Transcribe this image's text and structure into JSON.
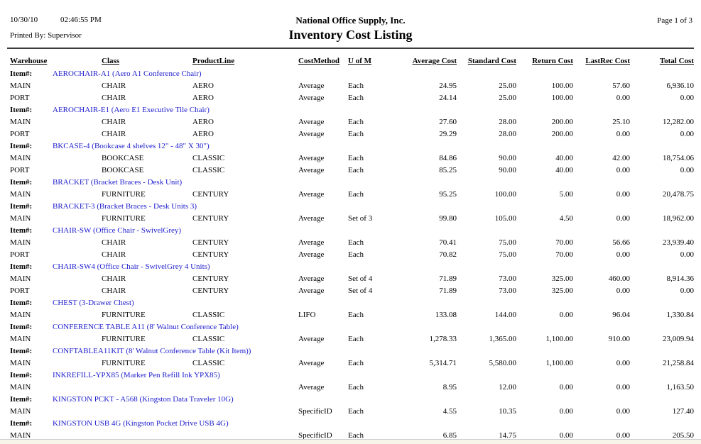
{
  "report": {
    "date": "10/30/10",
    "time": "02:46:55 PM",
    "printed_by": "Printed By: Supervisor",
    "company": "National Office Supply, Inc.",
    "title": "Inventory Cost Listing",
    "page_info": "Page 1 of 3",
    "link_color": "#1d1dce"
  },
  "table": {
    "item_label": "Item#:",
    "columns": [
      "Warehouse",
      "Class",
      "ProductLine",
      "CostMethod",
      "U of M",
      "Average Cost",
      "Standard Cost",
      "Return Cost",
      "LastRec Cost",
      "Total Cost"
    ],
    "items": [
      {
        "code": "AEROCHAIR-A1 (Aero A1 Conference Chair)",
        "rows": [
          {
            "warehouse": "MAIN",
            "class": "CHAIR",
            "product_line": "AERO",
            "cost_method": "Average",
            "uofm": "Each",
            "average_cost": "24.95",
            "standard_cost": "25.00",
            "return_cost": "100.00",
            "last_rec_cost": "57.60",
            "total_cost": "6,936.10"
          },
          {
            "warehouse": "PORT",
            "class": "CHAIR",
            "product_line": "AERO",
            "cost_method": "Average",
            "uofm": "Each",
            "average_cost": "24.14",
            "standard_cost": "25.00",
            "return_cost": "100.00",
            "last_rec_cost": "0.00",
            "total_cost": "0.00"
          }
        ]
      },
      {
        "code": "AEROCHAIR-E1 (Aero E1 Executive Tile Chair)",
        "rows": [
          {
            "warehouse": "MAIN",
            "class": "CHAIR",
            "product_line": "AERO",
            "cost_method": "Average",
            "uofm": "Each",
            "average_cost": "27.60",
            "standard_cost": "28.00",
            "return_cost": "200.00",
            "last_rec_cost": "25.10",
            "total_cost": "12,282.00"
          },
          {
            "warehouse": "PORT",
            "class": "CHAIR",
            "product_line": "AERO",
            "cost_method": "Average",
            "uofm": "Each",
            "average_cost": "29.29",
            "standard_cost": "28.00",
            "return_cost": "200.00",
            "last_rec_cost": "0.00",
            "total_cost": "0.00"
          }
        ]
      },
      {
        "code": "BKCASE-4 (Bookcase 4 shelves 12\" - 48\" X 30\")",
        "rows": [
          {
            "warehouse": "MAIN",
            "class": "BOOKCASE",
            "product_line": "CLASSIC",
            "cost_method": "Average",
            "uofm": "Each",
            "average_cost": "84.86",
            "standard_cost": "90.00",
            "return_cost": "40.00",
            "last_rec_cost": "42.00",
            "total_cost": "18,754.06"
          },
          {
            "warehouse": "PORT",
            "class": "BOOKCASE",
            "product_line": "CLASSIC",
            "cost_method": "Average",
            "uofm": "Each",
            "average_cost": "85.25",
            "standard_cost": "90.00",
            "return_cost": "40.00",
            "last_rec_cost": "0.00",
            "total_cost": "0.00"
          }
        ]
      },
      {
        "code": "BRACKET (Bracket Braces - Desk Unit)",
        "rows": [
          {
            "warehouse": "MAIN",
            "class": "FURNITURE",
            "product_line": "CENTURY",
            "cost_method": "Average",
            "uofm": "Each",
            "average_cost": "95.25",
            "standard_cost": "100.00",
            "return_cost": "5.00",
            "last_rec_cost": "0.00",
            "total_cost": "20,478.75"
          }
        ]
      },
      {
        "code": "BRACKET-3 (Bracket Braces - Desk Units 3)",
        "rows": [
          {
            "warehouse": "MAIN",
            "class": "FURNITURE",
            "product_line": "CENTURY",
            "cost_method": "Average",
            "uofm": "Set of 3",
            "average_cost": "99.80",
            "standard_cost": "105.00",
            "return_cost": "4.50",
            "last_rec_cost": "0.00",
            "total_cost": "18,962.00"
          }
        ]
      },
      {
        "code": "CHAIR-SW (Office Chair - SwivelGrey)",
        "rows": [
          {
            "warehouse": "MAIN",
            "class": "CHAIR",
            "product_line": "CENTURY",
            "cost_method": "Average",
            "uofm": "Each",
            "average_cost": "70.41",
            "standard_cost": "75.00",
            "return_cost": "70.00",
            "last_rec_cost": "56.66",
            "total_cost": "23,939.40"
          },
          {
            "warehouse": "PORT",
            "class": "CHAIR",
            "product_line": "CENTURY",
            "cost_method": "Average",
            "uofm": "Each",
            "average_cost": "70.82",
            "standard_cost": "75.00",
            "return_cost": "70.00",
            "last_rec_cost": "0.00",
            "total_cost": "0.00"
          }
        ]
      },
      {
        "code": "CHAIR-SW4 (Office Chair - SwivelGrey 4 Units)",
        "rows": [
          {
            "warehouse": "MAIN",
            "class": "CHAIR",
            "product_line": "CENTURY",
            "cost_method": "Average",
            "uofm": "Set of 4",
            "average_cost": "71.89",
            "standard_cost": "73.00",
            "return_cost": "325.00",
            "last_rec_cost": "460.00",
            "total_cost": "8,914.36"
          },
          {
            "warehouse": "PORT",
            "class": "CHAIR",
            "product_line": "CENTURY",
            "cost_method": "Average",
            "uofm": "Set of 4",
            "average_cost": "71.89",
            "standard_cost": "73.00",
            "return_cost": "325.00",
            "last_rec_cost": "0.00",
            "total_cost": "0.00"
          }
        ]
      },
      {
        "code": "CHEST (3-Drawer Chest)",
        "rows": [
          {
            "warehouse": "MAIN",
            "class": "FURNITURE",
            "product_line": "CLASSIC",
            "cost_method": "LIFO",
            "uofm": "Each",
            "average_cost": "133.08",
            "standard_cost": "144.00",
            "return_cost": "0.00",
            "last_rec_cost": "96.04",
            "total_cost": "1,330.84"
          }
        ]
      },
      {
        "code": "CONFERENCE TABLE A11 (8' Walnut Conference Table)",
        "rows": [
          {
            "warehouse": "MAIN",
            "class": "FURNITURE",
            "product_line": "CLASSIC",
            "cost_method": "Average",
            "uofm": "Each",
            "average_cost": "1,278.33",
            "standard_cost": "1,365.00",
            "return_cost": "1,100.00",
            "last_rec_cost": "910.00",
            "total_cost": "23,009.94"
          }
        ]
      },
      {
        "code": "CONFTABLEA11KIT (8' Walnut Conference Table (Kit Item))",
        "rows": [
          {
            "warehouse": "MAIN",
            "class": "FURNITURE",
            "product_line": "CLASSIC",
            "cost_method": "Average",
            "uofm": "Each",
            "average_cost": "5,314.71",
            "standard_cost": "5,580.00",
            "return_cost": "1,100.00",
            "last_rec_cost": "0.00",
            "total_cost": "21,258.84"
          }
        ]
      },
      {
        "code": "INKREFILL-YPX85 (Marker Pen Refill Ink YPX85)",
        "rows": [
          {
            "warehouse": "MAIN",
            "class": "",
            "product_line": "",
            "cost_method": "Average",
            "uofm": "Each",
            "average_cost": "8.95",
            "standard_cost": "12.00",
            "return_cost": "0.00",
            "last_rec_cost": "0.00",
            "total_cost": "1,163.50"
          }
        ]
      },
      {
        "code": "KINGSTON PCKT - A568 (Kingston Data Traveler 10G)",
        "rows": [
          {
            "warehouse": "MAIN",
            "class": "",
            "product_line": "",
            "cost_method": "SpecificID",
            "uofm": "Each",
            "average_cost": "4.55",
            "standard_cost": "10.35",
            "return_cost": "0.00",
            "last_rec_cost": "0.00",
            "total_cost": "127.40"
          }
        ]
      },
      {
        "code": "KINGSTON USB 4G (Kingston Pocket Drive USB 4G)",
        "rows": [
          {
            "warehouse": "MAIN",
            "class": "",
            "product_line": "",
            "cost_method": "SpecificID",
            "uofm": "Each",
            "average_cost": "6.85",
            "standard_cost": "14.75",
            "return_cost": "0.00",
            "last_rec_cost": "0.00",
            "total_cost": "205.50"
          }
        ]
      }
    ]
  }
}
